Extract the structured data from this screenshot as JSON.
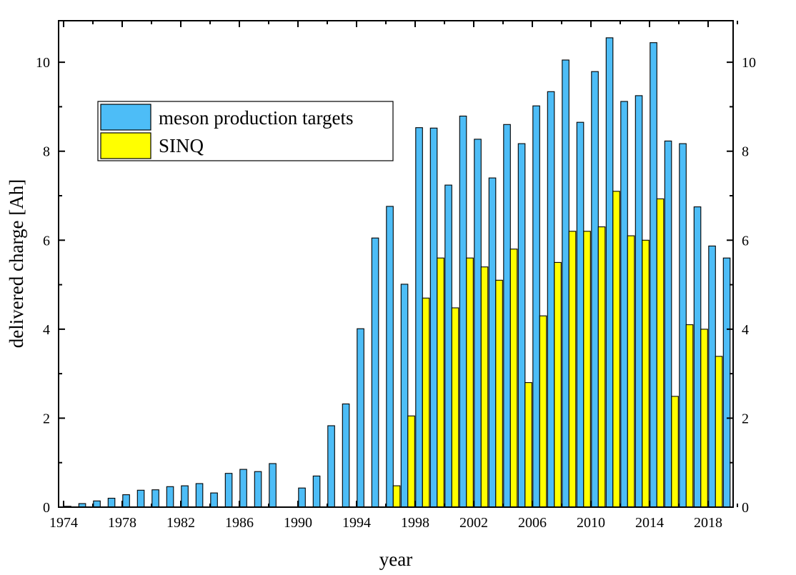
{
  "chart_data": {
    "type": "bar",
    "xlabel": "year",
    "ylabel": "delivered charge [Ah]",
    "x_ticks": [
      1974,
      1978,
      1982,
      1986,
      1990,
      1994,
      1998,
      2002,
      2006,
      2010,
      2014,
      2018
    ],
    "y_ticks": [
      0,
      2,
      4,
      6,
      8,
      10
    ],
    "xlim": [
      1974,
      2021
    ],
    "ylim": [
      0,
      11
    ],
    "legend_position": "upper-left",
    "series": [
      {
        "name": "meson production targets",
        "color": "#4DBDF7",
        "points": [
          [
            1974,
            0.02
          ],
          [
            1975,
            0.08
          ],
          [
            1976,
            0.14
          ],
          [
            1977,
            0.2
          ],
          [
            1978,
            0.28
          ],
          [
            1979,
            0.38
          ],
          [
            1980,
            0.39
          ],
          [
            1981,
            0.46
          ],
          [
            1982,
            0.48
          ],
          [
            1983,
            0.53
          ],
          [
            1984,
            0.32
          ],
          [
            1985,
            0.76
          ],
          [
            1986,
            0.85
          ],
          [
            1987,
            0.8
          ],
          [
            1988,
            0.98
          ],
          [
            1990,
            0.43
          ],
          [
            1991,
            0.7
          ],
          [
            1992,
            1.83
          ],
          [
            1993,
            2.32
          ],
          [
            1994,
            4.01
          ],
          [
            1995,
            6.05
          ],
          [
            1996,
            6.76
          ],
          [
            1997,
            5.01
          ],
          [
            1998,
            8.53
          ],
          [
            1999,
            8.52
          ],
          [
            2000,
            7.24
          ],
          [
            2001,
            8.79
          ],
          [
            2002,
            8.27
          ],
          [
            2003,
            7.4
          ],
          [
            2004,
            8.6
          ],
          [
            2005,
            8.17
          ],
          [
            2006,
            9.02
          ],
          [
            2007,
            9.34
          ],
          [
            2008,
            10.05
          ],
          [
            2009,
            8.65
          ],
          [
            2010,
            9.79
          ],
          [
            2011,
            10.55
          ],
          [
            2012,
            9.12
          ],
          [
            2013,
            9.25
          ],
          [
            2014,
            10.44
          ],
          [
            2015,
            8.23
          ],
          [
            2016,
            8.17
          ],
          [
            2017,
            6.75
          ],
          [
            2018,
            5.87
          ],
          [
            2019,
            5.6
          ]
        ]
      },
      {
        "name": "SINQ",
        "color": "#FFFF00",
        "points": [
          [
            1996,
            0.48
          ],
          [
            1997,
            2.05
          ],
          [
            1998,
            4.7
          ],
          [
            1999,
            5.6
          ],
          [
            2000,
            4.48
          ],
          [
            2001,
            5.6
          ],
          [
            2002,
            5.4
          ],
          [
            2003,
            5.1
          ],
          [
            2004,
            5.8
          ],
          [
            2005,
            2.8
          ],
          [
            2006,
            4.3
          ],
          [
            2007,
            5.5
          ],
          [
            2008,
            6.2
          ],
          [
            2009,
            6.2
          ],
          [
            2010,
            6.3
          ],
          [
            2011,
            7.1
          ],
          [
            2012,
            6.1
          ],
          [
            2013,
            6.0
          ],
          [
            2014,
            6.93
          ],
          [
            2015,
            2.49
          ],
          [
            2016,
            4.1
          ],
          [
            2017,
            4.0
          ],
          [
            2018,
            3.39
          ]
        ]
      }
    ]
  }
}
